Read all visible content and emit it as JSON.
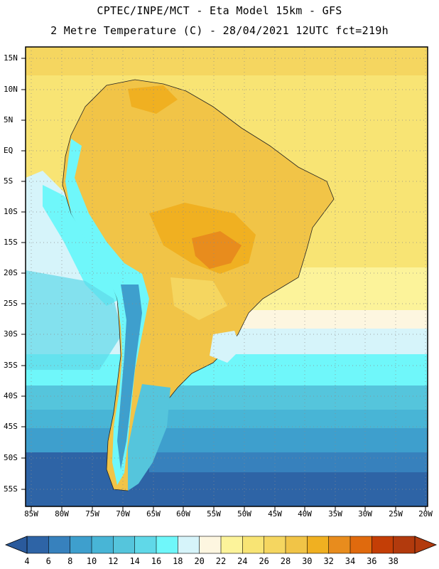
{
  "header": {
    "line1": "CPTEC/INPE/MCT -  Eta Model 15km - GFS",
    "line2": "2 Metre Temperature (C) - 28/04/2021 12UTC fct=219h"
  },
  "map": {
    "lat_labels": [
      "15N",
      "10N",
      "5N",
      "EQ",
      "5S",
      "10S",
      "15S",
      "20S",
      "25S",
      "30S",
      "35S",
      "40S",
      "45S",
      "50S",
      "55S"
    ],
    "lon_labels": [
      "85W",
      "80W",
      "75W",
      "70W",
      "65W",
      "60W",
      "55W",
      "50W",
      "45W",
      "40W",
      "35W",
      "30W",
      "25W",
      "20W"
    ]
  },
  "legend": {
    "values": [
      "4",
      "6",
      "8",
      "10",
      "12",
      "14",
      "16",
      "18",
      "20",
      "22",
      "24",
      "26",
      "28",
      "30",
      "32",
      "34",
      "36",
      "38"
    ],
    "colors": [
      "#2e64a6",
      "#3781bd",
      "#3e9fcd",
      "#48b5d6",
      "#55c5dc",
      "#60d8e8",
      "#6ff7fa",
      "#d6f4fa",
      "#fdf6e0",
      "#fcf39a",
      "#f8e474",
      "#f5d660",
      "#f1c447",
      "#f0b021",
      "#e88c1d",
      "#e06a0d",
      "#c43e06",
      "#b23a0d"
    ]
  }
}
